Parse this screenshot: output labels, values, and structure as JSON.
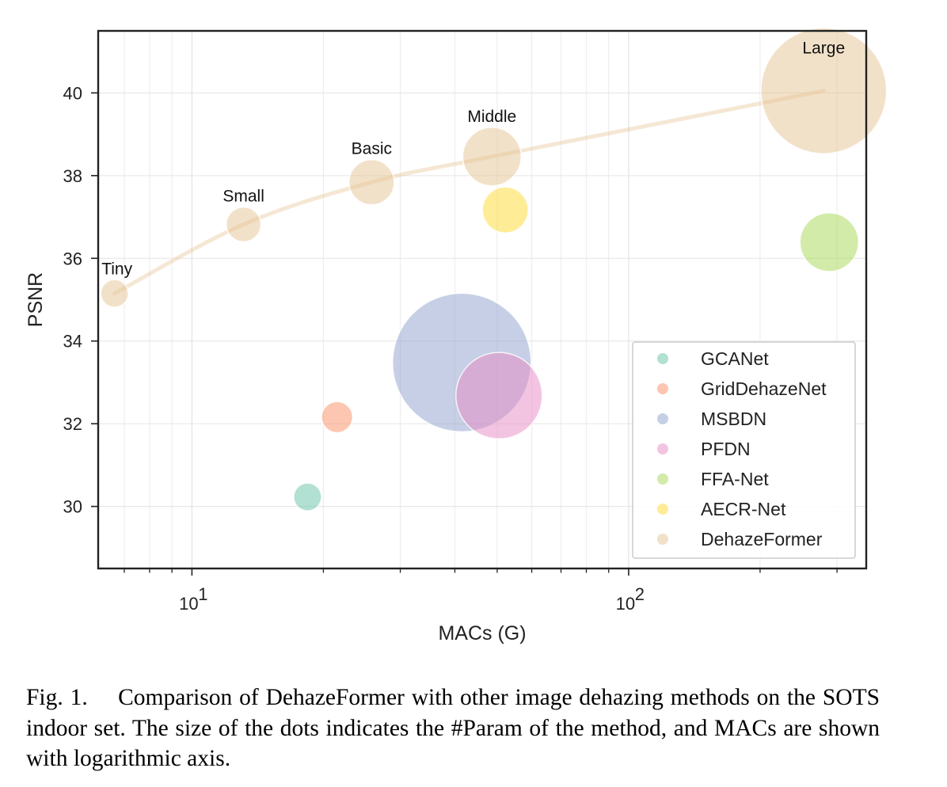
{
  "chart_data": {
    "type": "scatter",
    "xlabel": "MACs (G)",
    "ylabel": "PSNR",
    "xscale": "log",
    "xlim": [
      6.1,
      350
    ],
    "ylim": [
      28.5,
      41.5
    ],
    "x_tick_labels": [
      {
        "value": 10,
        "base": "10",
        "exp": "1"
      },
      {
        "value": 100,
        "base": "10",
        "exp": "2"
      }
    ],
    "y_ticks": [
      30,
      32,
      34,
      36,
      38,
      40
    ],
    "grid": true,
    "legend_position": "lower-right",
    "size_encodes": "#Param",
    "series": [
      {
        "name": "GCANet",
        "color": "#66c2a5",
        "points": [
          {
            "x": 18.4,
            "y": 30.23,
            "size": 0.7
          }
        ]
      },
      {
        "name": "GridDehazeNet",
        "color": "#fc8d62",
        "points": [
          {
            "x": 21.5,
            "y": 32.16,
            "size": 0.96
          }
        ]
      },
      {
        "name": "MSBDN",
        "color": "#8da0cb",
        "points": [
          {
            "x": 41.5,
            "y": 33.48,
            "size": 31.35
          }
        ]
      },
      {
        "name": "PFDN",
        "color": "#e78ac3",
        "points": [
          {
            "x": 50.5,
            "y": 32.68,
            "size": 11.27
          }
        ]
      },
      {
        "name": "FFA-Net",
        "color": "#a6d854",
        "points": [
          {
            "x": 288,
            "y": 36.39,
            "size": 4.68
          }
        ]
      },
      {
        "name": "AECR-Net",
        "color": "#ffd92f",
        "points": [
          {
            "x": 52.2,
            "y": 37.17,
            "size": 2.61
          }
        ]
      },
      {
        "name": "DehazeFormer",
        "color": "#e5c494",
        "points": [
          {
            "x": 6.65,
            "y": 35.15,
            "size": 0.686,
            "label": "Tiny"
          },
          {
            "x": 13.13,
            "y": 36.82,
            "size": 1.283,
            "label": "Small"
          },
          {
            "x": 25.79,
            "y": 37.84,
            "size": 2.514,
            "label": "Basic"
          },
          {
            "x": 48.64,
            "y": 38.46,
            "size": 4.634,
            "label": "Middle"
          },
          {
            "x": 279.7,
            "y": 40.05,
            "size": 25.44,
            "label": "Large"
          }
        ]
      }
    ],
    "trend_line": {
      "series": "DehazeFormer",
      "color": "#e5c494"
    }
  },
  "caption": "Fig. 1.  Comparison of DehazeFormer with other image dehazing methods on the SOTS indoor set. The size of the dots indicates the #Param of the method, and MACs are shown with logarithmic axis."
}
